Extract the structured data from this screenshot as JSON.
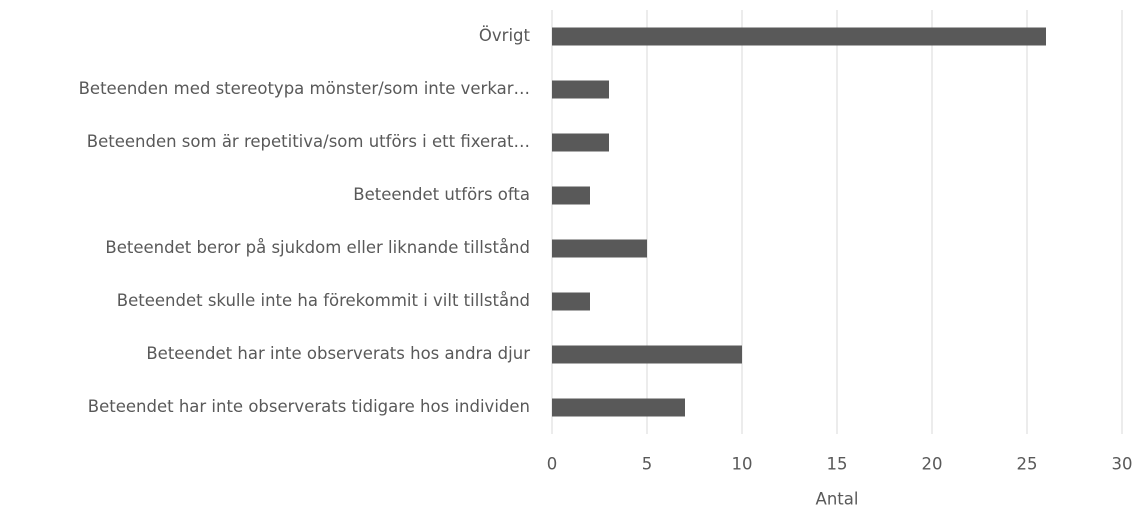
{
  "chart_data": {
    "type": "bar",
    "orientation": "horizontal",
    "x_label": "Antal",
    "categories": [
      "Övrigt",
      "Beteenden med stereotypa mönster/som inte verkar…",
      "Beteenden som är repetitiva/som utförs i ett fixerat…",
      "Beteendet utförs ofta",
      "Beteendet beror på sjukdom eller liknande tillstånd",
      "Beteendet skulle inte ha förekommit i vilt tillstånd",
      "Beteendet har inte observerats hos andra djur",
      "Beteendet har inte observerats tidigare hos individen"
    ],
    "values": [
      26,
      3,
      3,
      2,
      5,
      2,
      10,
      7
    ],
    "color": "#595959",
    "xlim": [
      0,
      30
    ],
    "xticks": [
      0,
      5,
      10,
      15,
      20,
      25,
      30
    ],
    "grid": true
  }
}
